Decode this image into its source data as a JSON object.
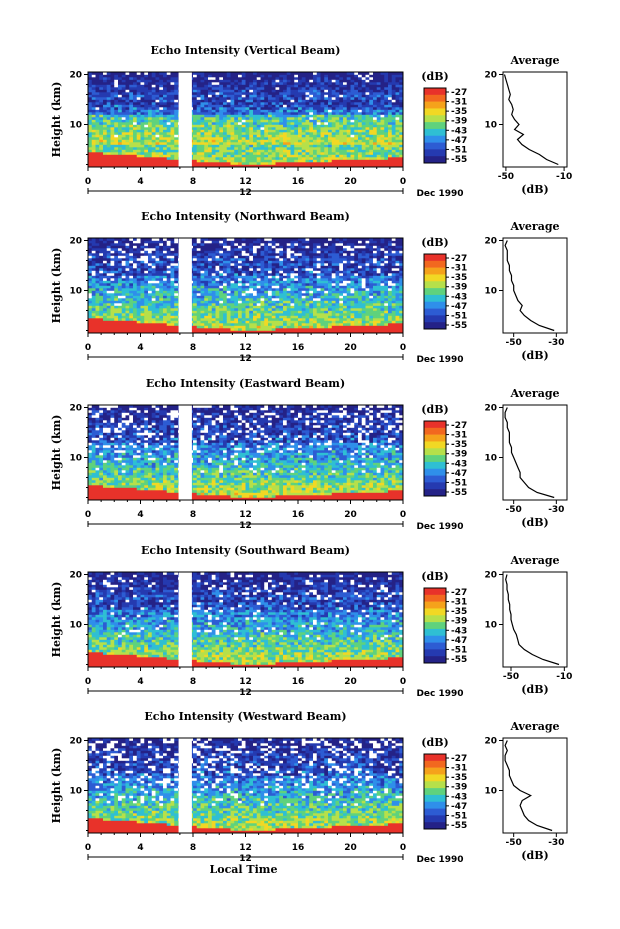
{
  "chart_data": [
    {
      "type": "heatmap",
      "title": "Echo Intensity (Vertical Beam)",
      "ylabel": "Height (km)",
      "y_ticks": [
        "20",
        "10"
      ],
      "ylim": [
        1.5,
        20.5
      ],
      "x_ticks": [
        "0",
        "4",
        "8",
        "12",
        "16",
        "20",
        "0"
      ],
      "xlim": [
        0,
        24
      ],
      "date_tick": "12",
      "date_label": "Dec 1990",
      "data_gap_hours": [
        7,
        8
      ],
      "colorbar": {
        "title": "(dB)",
        "ticks": [
          "-27",
          "-31",
          "-35",
          "-39",
          "-43",
          "-47",
          "-51",
          "-55"
        ]
      },
      "profile": {
        "title": "Average",
        "xlabel": "(dB)",
        "x_ticks": [
          "-50",
          "-10"
        ],
        "xlim": [
          -52,
          -8
        ],
        "y_ticks": [
          "20",
          "10"
        ],
        "ylim": [
          1.5,
          20.5
        ],
        "height_km": [
          2,
          3,
          4,
          5,
          6,
          7,
          8,
          9,
          10,
          11,
          12,
          13,
          14,
          15,
          16,
          17,
          18,
          19,
          20
        ],
        "db": [
          -14,
          -22,
          -27,
          -34,
          -39,
          -42,
          -38,
          -44,
          -41,
          -44,
          -46,
          -45,
          -46,
          -48,
          -47,
          -48,
          -49,
          -50,
          -51
        ]
      }
    },
    {
      "type": "heatmap",
      "title": "Echo Intensity (Northward Beam)",
      "ylabel": "Height (km)",
      "y_ticks": [
        "20",
        "10"
      ],
      "ylim": [
        1.5,
        20.5
      ],
      "x_ticks": [
        "0",
        "4",
        "8",
        "12",
        "16",
        "20",
        "0"
      ],
      "xlim": [
        0,
        24
      ],
      "date_tick": "12",
      "date_label": "Dec 1990",
      "data_gap_hours": [
        7,
        8
      ],
      "colorbar": {
        "title": "(dB)",
        "ticks": [
          "-27",
          "-31",
          "-35",
          "-39",
          "-43",
          "-47",
          "-51",
          "-55"
        ]
      },
      "profile": {
        "title": "Average",
        "xlabel": "(dB)",
        "x_ticks": [
          "-50",
          "-30"
        ],
        "xlim": [
          -55,
          -25
        ],
        "y_ticks": [
          "20",
          "10"
        ],
        "ylim": [
          1.5,
          20.5
        ],
        "height_km": [
          2,
          3,
          4,
          5,
          6,
          7,
          8,
          9,
          10,
          11,
          12,
          13,
          14,
          15,
          16,
          17,
          18,
          19,
          20
        ],
        "db": [
          -31,
          -38,
          -42,
          -45,
          -47,
          -46,
          -48,
          -49,
          -50,
          -50,
          -51,
          -51,
          -52,
          -52,
          -53,
          -53,
          -53,
          -54,
          -53
        ]
      }
    },
    {
      "type": "heatmap",
      "title": "Echo Intensity (Eastward Beam)",
      "ylabel": "Height (km)",
      "y_ticks": [
        "20",
        "10"
      ],
      "ylim": [
        1.5,
        20.5
      ],
      "x_ticks": [
        "0",
        "4",
        "8",
        "12",
        "16",
        "20",
        "0"
      ],
      "xlim": [
        0,
        24
      ],
      "date_tick": "12",
      "date_label": "Dec 1990",
      "data_gap_hours": [
        7,
        8
      ],
      "colorbar": {
        "title": "(dB)",
        "ticks": [
          "-27",
          "-31",
          "-35",
          "-39",
          "-43",
          "-47",
          "-51",
          "-55"
        ]
      },
      "profile": {
        "title": "Average",
        "xlabel": "(dB)",
        "x_ticks": [
          "-50",
          "-30"
        ],
        "xlim": [
          -55,
          -25
        ],
        "y_ticks": [
          "20",
          "10"
        ],
        "ylim": [
          1.5,
          20.5
        ],
        "height_km": [
          2,
          3,
          4,
          5,
          6,
          7,
          8,
          9,
          10,
          11,
          12,
          13,
          14,
          15,
          16,
          17,
          18,
          19,
          20
        ],
        "db": [
          -31,
          -39,
          -43,
          -45,
          -47,
          -47,
          -48,
          -49,
          -50,
          -51,
          -51,
          -52,
          -52,
          -52,
          -53,
          -53,
          -54,
          -54,
          -53
        ]
      }
    },
    {
      "type": "heatmap",
      "title": "Echo Intensity (Southward Beam)",
      "ylabel": "Height (km)",
      "y_ticks": [
        "20",
        "10"
      ],
      "ylim": [
        1.5,
        20.5
      ],
      "x_ticks": [
        "0",
        "4",
        "8",
        "12",
        "16",
        "20",
        "0"
      ],
      "xlim": [
        0,
        24
      ],
      "date_tick": "12",
      "date_label": "Dec 1990",
      "data_gap_hours": [
        7,
        8
      ],
      "colorbar": {
        "title": "(dB)",
        "ticks": [
          "-27",
          "-31",
          "-35",
          "-39",
          "-43",
          "-47",
          "-51",
          "-55"
        ]
      },
      "profile": {
        "title": "Average",
        "xlabel": "(dB)",
        "x_ticks": [
          "-50",
          "-10"
        ],
        "xlim": [
          -56,
          -8
        ],
        "y_ticks": [
          "20",
          "10"
        ],
        "ylim": [
          1.5,
          20.5
        ],
        "height_km": [
          2,
          3,
          4,
          5,
          6,
          7,
          8,
          9,
          10,
          11,
          12,
          13,
          14,
          15,
          16,
          17,
          18,
          19,
          20
        ],
        "db": [
          -14,
          -26,
          -34,
          -40,
          -44,
          -45,
          -46,
          -48,
          -49,
          -50,
          -50,
          -51,
          -51,
          -52,
          -52,
          -53,
          -53,
          -54,
          -53
        ]
      }
    },
    {
      "type": "heatmap",
      "title": "Echo Intensity (Westward Beam)",
      "ylabel": "Height (km)",
      "y_ticks": [
        "20",
        "10"
      ],
      "ylim": [
        1.5,
        20.5
      ],
      "x_ticks": [
        "0",
        "4",
        "8",
        "12",
        "16",
        "20",
        "0"
      ],
      "xlim": [
        0,
        24
      ],
      "date_tick": "12",
      "date_label": "Dec 1990",
      "xlabel": "Local Time",
      "data_gap_hours": [
        7,
        8
      ],
      "colorbar": {
        "title": "(dB)",
        "ticks": [
          "-27",
          "-31",
          "-35",
          "-39",
          "-43",
          "-47",
          "-51",
          "-55"
        ]
      },
      "profile": {
        "title": "Average",
        "xlabel": "(dB)",
        "x_ticks": [
          "-50",
          "-30"
        ],
        "xlim": [
          -55,
          -25
        ],
        "y_ticks": [
          "20",
          "10"
        ],
        "ylim": [
          1.5,
          20.5
        ],
        "height_km": [
          2,
          3,
          4,
          5,
          6,
          7,
          8,
          9,
          10,
          11,
          12,
          13,
          14,
          15,
          16,
          17,
          18,
          19,
          20
        ],
        "db": [
          -32,
          -39,
          -43,
          -45,
          -46,
          -47,
          -46,
          -42,
          -47,
          -50,
          -51,
          -52,
          -52,
          -53,
          -54,
          -54,
          -53,
          -54,
          -53
        ]
      }
    }
  ],
  "colors": {
    "scale_high_to_low": [
      "#e8322a",
      "#f2681f",
      "#f5a21b",
      "#f1d824",
      "#b6e04a",
      "#5fd27d",
      "#2fbfd3",
      "#2f8fea",
      "#2d5cd3",
      "#253ab0",
      "#242287"
    ],
    "no_data": "#ffffff",
    "axis": "#000000"
  }
}
